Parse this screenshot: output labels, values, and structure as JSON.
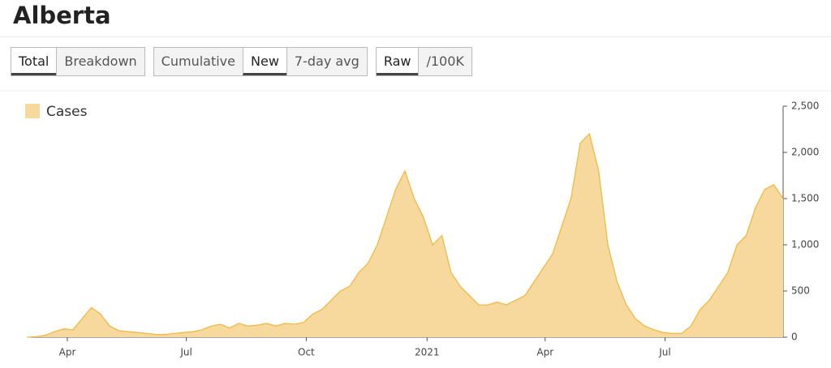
{
  "header": {
    "title": "Alberta"
  },
  "controls": [
    {
      "items": [
        "Total",
        "Breakdown"
      ],
      "active": 0
    },
    {
      "items": [
        "Cumulative",
        "New",
        "7-day avg"
      ],
      "active": 1
    },
    {
      "items": [
        "Raw",
        "/100K"
      ],
      "active": 0
    }
  ],
  "chart_data": {
    "type": "area",
    "series": [
      {
        "name": "Cases",
        "color": "#f7d99e",
        "line_color": "#f0b944",
        "values": [
          0,
          5,
          20,
          60,
          90,
          80,
          200,
          320,
          250,
          120,
          70,
          60,
          50,
          40,
          30,
          30,
          40,
          50,
          60,
          80,
          120,
          140,
          100,
          150,
          120,
          130,
          150,
          120,
          150,
          140,
          160,
          250,
          300,
          400,
          500,
          550,
          700,
          800,
          1000,
          1300,
          1600,
          1800,
          1500,
          1300,
          1000,
          1100,
          700,
          550,
          450,
          350,
          350,
          380,
          350,
          400,
          450,
          600,
          750,
          900,
          1200,
          1500,
          2100,
          2200,
          1800,
          1000,
          600,
          350,
          200,
          120,
          80,
          50,
          40,
          40,
          120,
          300,
          400,
          550,
          700,
          1000,
          1100,
          1400,
          1600,
          1650,
          1500
        ]
      }
    ],
    "xlim": [
      0,
      82
    ],
    "xticks": [
      {
        "value": 4.4,
        "label": "Apr"
      },
      {
        "value": 17.3,
        "label": "Jul"
      },
      {
        "value": 30.3,
        "label": "Oct"
      },
      {
        "value": 43.4,
        "label": "2021"
      },
      {
        "value": 56.2,
        "label": "Apr"
      },
      {
        "value": 69.2,
        "label": "Jul"
      }
    ],
    "ylim": [
      0,
      2500
    ],
    "yticks": [
      0,
      500,
      {
        "value": 1000,
        "label": "1,000"
      },
      {
        "value": 1500,
        "label": "1,500"
      },
      {
        "value": 2000,
        "label": "2,000"
      },
      {
        "value": 2500,
        "label": "2,500"
      }
    ],
    "legend": "top-left"
  }
}
